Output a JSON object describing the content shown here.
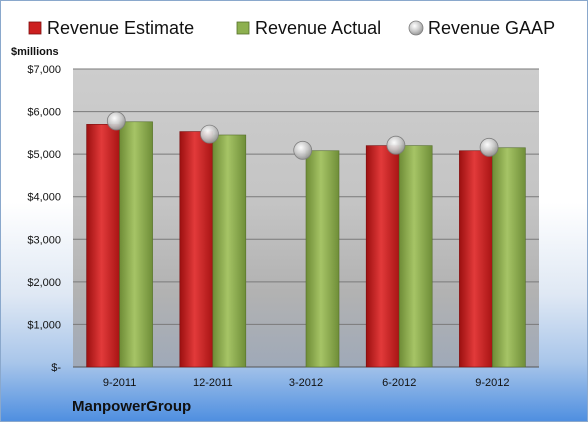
{
  "chart_data": {
    "type": "bar",
    "unit_label": "$millions",
    "categories": [
      "9-2011",
      "12-2011",
      "3-2012",
      "6-2012",
      "9-2012"
    ],
    "series": [
      {
        "name": "Revenue Estimate",
        "kind": "bar",
        "color": "#cc1f1f",
        "values": [
          5700,
          5530,
          null,
          5200,
          5080
        ]
      },
      {
        "name": "Revenue Actual",
        "kind": "bar",
        "color": "#8db04f",
        "values": [
          5760,
          5450,
          5080,
          5200,
          5150
        ]
      },
      {
        "name": "Revenue GAAP",
        "kind": "marker",
        "color": "#b8b8b8",
        "values": [
          5780,
          5470,
          5090,
          5210,
          5160
        ]
      }
    ],
    "yticks": [
      0,
      1000,
      2000,
      3000,
      4000,
      5000,
      6000,
      7000
    ],
    "ytick_labels": [
      "$-",
      "$1,000",
      "$2,000",
      "$3,000",
      "$4,000",
      "$5,000",
      "$6,000",
      "$7,000"
    ],
    "ylim": [
      0,
      7000
    ],
    "grid": true,
    "legend_position": "top"
  },
  "company_name": "ManpowerGroup"
}
